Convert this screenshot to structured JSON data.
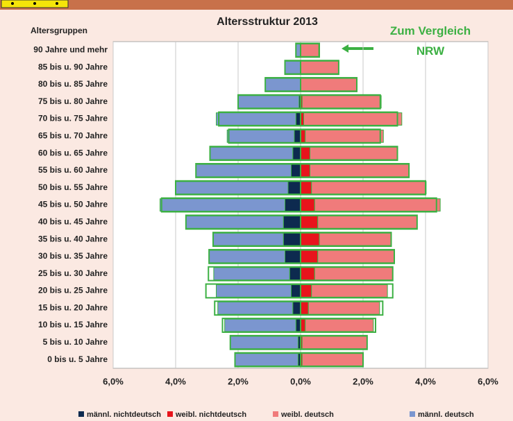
{
  "chart_data": {
    "type": "bar",
    "orientation": "horizontal",
    "stacked": true,
    "title": "Altersstruktur 2013",
    "y_label": "Altersgruppen",
    "categories": [
      "90 Jahre und mehr",
      "85 bis u. 90 Jahre",
      "80 bis u. 85 Jahre",
      "75 bis u. 80 Jahre",
      "70 bis u. 75 Jahre",
      "65 bis u. 70 Jahre",
      "60 bis u. 65 Jahre",
      "55 bis u. 60 Jahre",
      "50 bis u. 55 Jahre",
      "45 bis u. 50 Jahre",
      "40 bis u. 45 Jahre",
      "35 bis u. 40 Jahre",
      "30 bis u. 35 Jahre",
      "25 bis u. 30 Jahre",
      "20 bis u. 25 Jahre",
      "15 bis u. 20 Jahre",
      "10 bis u. 15 Jahre",
      "5 bis u. 10 Jahre",
      "0 bis u. 5 Jahre"
    ],
    "series": [
      {
        "name": "männl. nichtdeutsch",
        "color": "#0d2a4f",
        "values": [
          0,
          0,
          0,
          -0.05,
          -0.15,
          -0.2,
          -0.25,
          -0.3,
          -0.4,
          -0.5,
          -0.55,
          -0.55,
          -0.5,
          -0.35,
          -0.3,
          -0.25,
          -0.15,
          -0.08,
          -0.08
        ]
      },
      {
        "name": "weibl. nichtdeutsch",
        "color": "#e8141c",
        "values": [
          0,
          0,
          0,
          0.05,
          0.1,
          0.15,
          0.3,
          0.3,
          0.35,
          0.45,
          0.55,
          0.6,
          0.55,
          0.45,
          0.35,
          0.25,
          0.15,
          0.05,
          0.05
        ]
      },
      {
        "name": "weibl. deutsch",
        "color": "#f07b7b",
        "values": [
          0.58,
          1.22,
          1.8,
          2.53,
          3.14,
          2.5,
          2.8,
          3.17,
          3.67,
          4.02,
          3.18,
          2.3,
          2.45,
          2.5,
          2.43,
          2.28,
          2.18,
          2.08,
          1.95
        ]
      },
      {
        "name": "männl. deutsch",
        "color": "#7b96cf",
        "values": [
          -0.15,
          -0.5,
          -1.13,
          -1.95,
          -2.55,
          -2.15,
          -2.65,
          -3.05,
          -3.6,
          -4.0,
          -3.12,
          -2.25,
          -2.43,
          -2.43,
          -2.4,
          -2.4,
          -2.28,
          -2.17,
          -2.02
        ]
      }
    ],
    "comparison": {
      "label": "Zum Vergleich NRW",
      "color": "#3cb043",
      "male": [
        -0.15,
        -0.5,
        -1.13,
        -2.0,
        -2.62,
        -2.3,
        -2.9,
        -3.35,
        -4.0,
        -4.45,
        -3.67,
        -2.8,
        -2.93,
        -2.95,
        -3.03,
        -2.75,
        -2.5,
        -2.25,
        -2.1
      ],
      "female": [
        0.6,
        1.22,
        1.8,
        2.55,
        3.1,
        2.55,
        3.1,
        3.47,
        4.0,
        4.35,
        3.73,
        2.9,
        3.0,
        2.95,
        2.95,
        2.63,
        2.4,
        2.13,
        2.0
      ]
    },
    "xlim": [
      -6,
      6
    ],
    "xticks": [
      {
        "value": -6,
        "label": "6,0%"
      },
      {
        "value": -4,
        "label": "4,0%"
      },
      {
        "value": -2,
        "label": "2,0%"
      },
      {
        "value": 0,
        "label": "0,0%"
      },
      {
        "value": 2,
        "label": "2,0%"
      },
      {
        "value": 4,
        "label": "4,0%"
      },
      {
        "value": 6,
        "label": "6,0%"
      }
    ],
    "grid": true,
    "legend": "bottom"
  }
}
